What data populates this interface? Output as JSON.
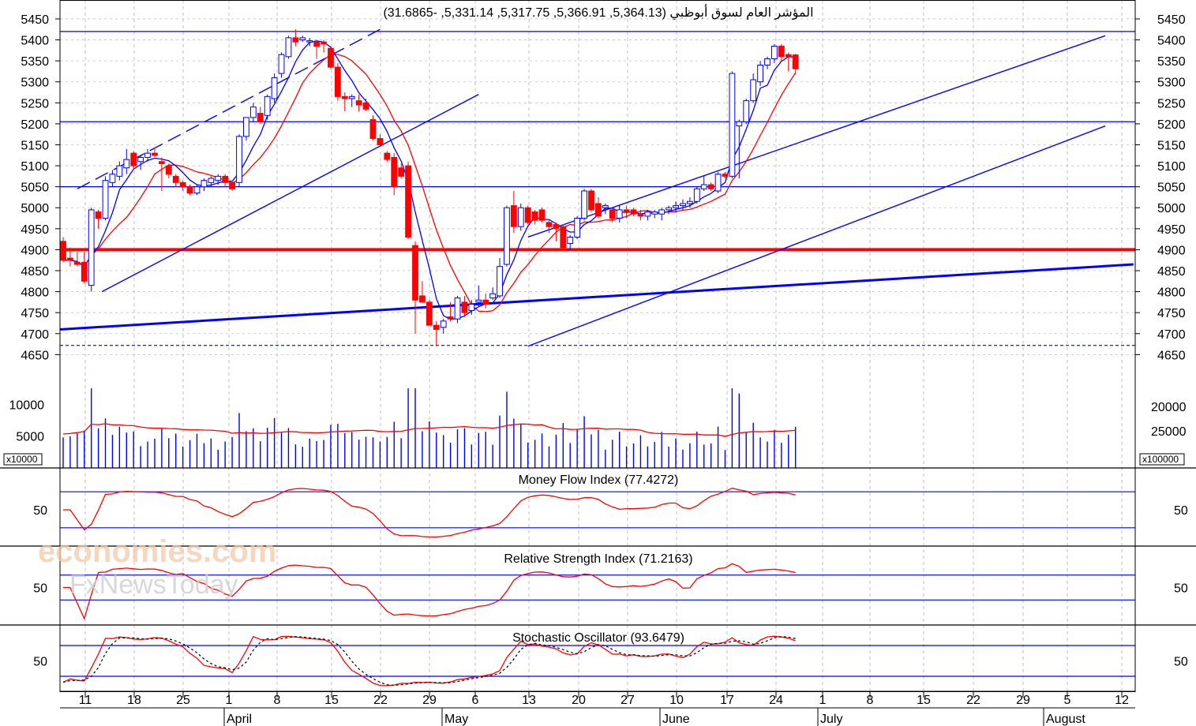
{
  "header": {
    "title": "المؤشر العام لسوق أبوظبي (5,364.13, 5,366.91, 5,317.75, 5,331.14, -31.6865)"
  },
  "watermark": {
    "line1": "economies.com",
    "line2": "FxNewsToday"
  },
  "colors": {
    "up": "#0000ff",
    "down": "#ff0000",
    "grid": "#c0c0c0",
    "line_blue": "#0000ff",
    "line_red": "#ff0000"
  },
  "chart_data": [
    {
      "type": "candlestick",
      "panel": "price",
      "title": "المؤشر العام لسوق أبوظبي (5,364.13, 5,366.91, 5,317.75, 5,331.14, -31.6865)",
      "y_ticks": [
        4650,
        4700,
        4750,
        4800,
        4850,
        4900,
        4950,
        5000,
        5050,
        5100,
        5150,
        5200,
        5250,
        5300,
        5350,
        5400,
        5450
      ],
      "ylim": [
        4630,
        5480
      ],
      "x_ticks": [
        "11",
        "18",
        "25",
        "1",
        "8",
        "15",
        "22",
        "29",
        "6",
        "13",
        "20",
        "27",
        "10",
        "17",
        "24",
        "1",
        "8",
        "15",
        "22",
        "29",
        "5",
        "12"
      ],
      "months": [
        "April",
        "May",
        "June",
        "July",
        "August"
      ],
      "candles": [
        {
          "o": 4920,
          "h": 4930,
          "l": 4870,
          "c": 4875
        },
        {
          "o": 4880,
          "h": 4905,
          "l": 4860,
          "c": 4875
        },
        {
          "o": 4870,
          "h": 4895,
          "l": 4860,
          "c": 4865
        },
        {
          "o": 4870,
          "h": 4895,
          "l": 4820,
          "c": 4825
        },
        {
          "o": 4815,
          "h": 5000,
          "l": 4800,
          "c": 4995
        },
        {
          "o": 4990,
          "h": 4995,
          "l": 4950,
          "c": 4975
        },
        {
          "o": 4975,
          "h": 5075,
          "l": 4970,
          "c": 5065
        },
        {
          "o": 5060,
          "h": 5090,
          "l": 5050,
          "c": 5080
        },
        {
          "o": 5075,
          "h": 5110,
          "l": 5065,
          "c": 5100
        },
        {
          "o": 5095,
          "h": 5140,
          "l": 5080,
          "c": 5115
        },
        {
          "o": 5130,
          "h": 5135,
          "l": 5090,
          "c": 5100
        },
        {
          "o": 5110,
          "h": 5125,
          "l": 5090,
          "c": 5120
        },
        {
          "o": 5120,
          "h": 5140,
          "l": 5110,
          "c": 5130
        },
        {
          "o": 5130,
          "h": 5140,
          "l": 5120,
          "c": 5125
        },
        {
          "o": 5110,
          "h": 5120,
          "l": 5040,
          "c": 5105
        },
        {
          "o": 5100,
          "h": 5105,
          "l": 5070,
          "c": 5080
        },
        {
          "o": 5075,
          "h": 5080,
          "l": 5050,
          "c": 5060
        },
        {
          "o": 5060,
          "h": 5065,
          "l": 5040,
          "c": 5050
        },
        {
          "o": 5050,
          "h": 5055,
          "l": 5030,
          "c": 5035
        },
        {
          "o": 5035,
          "h": 5055,
          "l": 5030,
          "c": 5050
        },
        {
          "o": 5050,
          "h": 5070,
          "l": 5040,
          "c": 5065
        },
        {
          "o": 5060,
          "h": 5075,
          "l": 5050,
          "c": 5070
        },
        {
          "o": 5065,
          "h": 5080,
          "l": 5055,
          "c": 5075
        },
        {
          "o": 5075,
          "h": 5080,
          "l": 5050,
          "c": 5060
        },
        {
          "o": 5060,
          "h": 5065,
          "l": 5040,
          "c": 5045
        },
        {
          "o": 5060,
          "h": 5175,
          "l": 5050,
          "c": 5170
        },
        {
          "o": 5170,
          "h": 5215,
          "l": 5160,
          "c": 5215
        },
        {
          "o": 5215,
          "h": 5250,
          "l": 5205,
          "c": 5240
        },
        {
          "o": 5225,
          "h": 5240,
          "l": 5200,
          "c": 5205
        },
        {
          "o": 5220,
          "h": 5270,
          "l": 5210,
          "c": 5265
        },
        {
          "o": 5260,
          "h": 5320,
          "l": 5250,
          "c": 5310
        },
        {
          "o": 5320,
          "h": 5370,
          "l": 5310,
          "c": 5365
        },
        {
          "o": 5360,
          "h": 5410,
          "l": 5355,
          "c": 5405
        },
        {
          "o": 5405,
          "h": 5425,
          "l": 5385,
          "c": 5395
        },
        {
          "o": 5400,
          "h": 5410,
          "l": 5395,
          "c": 5405
        },
        {
          "o": 5395,
          "h": 5405,
          "l": 5385,
          "c": 5398
        },
        {
          "o": 5395,
          "h": 5400,
          "l": 5355,
          "c": 5385
        },
        {
          "o": 5395,
          "h": 5400,
          "l": 5370,
          "c": 5390
        },
        {
          "o": 5380,
          "h": 5385,
          "l": 5330,
          "c": 5335
        },
        {
          "o": 5335,
          "h": 5345,
          "l": 5255,
          "c": 5265
        },
        {
          "o": 5265,
          "h": 5275,
          "l": 5230,
          "c": 5260
        },
        {
          "o": 5260,
          "h": 5270,
          "l": 5240,
          "c": 5265
        },
        {
          "o": 5255,
          "h": 5270,
          "l": 5230,
          "c": 5245
        },
        {
          "o": 5250,
          "h": 5260,
          "l": 5230,
          "c": 5235
        },
        {
          "o": 5210,
          "h": 5220,
          "l": 5160,
          "c": 5165
        },
        {
          "o": 5165,
          "h": 5175,
          "l": 5145,
          "c": 5150
        },
        {
          "o": 5130,
          "h": 5135,
          "l": 5110,
          "c": 5115
        },
        {
          "o": 5120,
          "h": 5130,
          "l": 5030,
          "c": 5050
        },
        {
          "o": 5095,
          "h": 5105,
          "l": 5070,
          "c": 5075
        },
        {
          "o": 5100,
          "h": 5110,
          "l": 4925,
          "c": 4930
        },
        {
          "o": 4910,
          "h": 4920,
          "l": 4700,
          "c": 4780
        },
        {
          "o": 4790,
          "h": 4825,
          "l": 4775,
          "c": 4775
        },
        {
          "o": 4775,
          "h": 4780,
          "l": 4720,
          "c": 4720
        },
        {
          "o": 4720,
          "h": 4730,
          "l": 4670,
          "c": 4710
        },
        {
          "o": 4715,
          "h": 4735,
          "l": 4700,
          "c": 4730
        },
        {
          "o": 4740,
          "h": 4775,
          "l": 4730,
          "c": 4735
        },
        {
          "o": 4735,
          "h": 4790,
          "l": 4725,
          "c": 4785
        },
        {
          "o": 4775,
          "h": 4790,
          "l": 4740,
          "c": 4750
        },
        {
          "o": 4755,
          "h": 4780,
          "l": 4745,
          "c": 4770
        },
        {
          "o": 4775,
          "h": 4815,
          "l": 4765,
          "c": 4780
        },
        {
          "o": 4780,
          "h": 4795,
          "l": 4760,
          "c": 4770
        },
        {
          "o": 4785,
          "h": 4810,
          "l": 4780,
          "c": 4795
        },
        {
          "o": 4790,
          "h": 4880,
          "l": 4785,
          "c": 4860
        },
        {
          "o": 4865,
          "h": 5005,
          "l": 4860,
          "c": 5000
        },
        {
          "o": 5005,
          "h": 5040,
          "l": 4940,
          "c": 4955
        },
        {
          "o": 4955,
          "h": 5010,
          "l": 4945,
          "c": 5000
        },
        {
          "o": 5000,
          "h": 5005,
          "l": 4960,
          "c": 4965
        },
        {
          "o": 4990,
          "h": 4995,
          "l": 4960,
          "c": 4970
        },
        {
          "o": 4995,
          "h": 5000,
          "l": 4965,
          "c": 4970
        },
        {
          "o": 4965,
          "h": 4970,
          "l": 4940,
          "c": 4955
        },
        {
          "o": 4960,
          "h": 4965,
          "l": 4920,
          "c": 4950
        },
        {
          "o": 4955,
          "h": 4960,
          "l": 4900,
          "c": 4905
        },
        {
          "o": 4915,
          "h": 4935,
          "l": 4900,
          "c": 4930
        },
        {
          "o": 4930,
          "h": 4980,
          "l": 4925,
          "c": 4975
        },
        {
          "o": 4975,
          "h": 5045,
          "l": 4970,
          "c": 5040
        },
        {
          "o": 5040,
          "h": 5045,
          "l": 4990,
          "c": 4995
        },
        {
          "o": 5010,
          "h": 5025,
          "l": 4975,
          "c": 4980
        },
        {
          "o": 5000,
          "h": 5010,
          "l": 4985,
          "c": 5005
        },
        {
          "o": 4995,
          "h": 5000,
          "l": 4965,
          "c": 4975
        },
        {
          "o": 4975,
          "h": 5005,
          "l": 4965,
          "c": 4995
        },
        {
          "o": 4995,
          "h": 5005,
          "l": 4975,
          "c": 4990
        },
        {
          "o": 4995,
          "h": 5000,
          "l": 4980,
          "c": 4985
        },
        {
          "o": 4985,
          "h": 4995,
          "l": 4970,
          "c": 4980
        },
        {
          "o": 4980,
          "h": 4995,
          "l": 4970,
          "c": 4990
        },
        {
          "o": 4985,
          "h": 4995,
          "l": 4975,
          "c": 4990
        },
        {
          "o": 4985,
          "h": 5000,
          "l": 4970,
          "c": 4995
        },
        {
          "o": 4995,
          "h": 5005,
          "l": 4985,
          "c": 5000
        },
        {
          "o": 5000,
          "h": 5015,
          "l": 4990,
          "c": 5005
        },
        {
          "o": 5005,
          "h": 5020,
          "l": 4995,
          "c": 5010
        },
        {
          "o": 5010,
          "h": 5025,
          "l": 5000,
          "c": 5015
        },
        {
          "o": 5015,
          "h": 5050,
          "l": 5010,
          "c": 5045
        },
        {
          "o": 5045,
          "h": 5075,
          "l": 5040,
          "c": 5055
        },
        {
          "o": 5055,
          "h": 5060,
          "l": 5040,
          "c": 5045
        },
        {
          "o": 5040,
          "h": 5085,
          "l": 5035,
          "c": 5080
        },
        {
          "o": 5080,
          "h": 5085,
          "l": 5070,
          "c": 5075
        },
        {
          "o": 5075,
          "h": 5325,
          "l": 5070,
          "c": 5320
        },
        {
          "o": 5195,
          "h": 5210,
          "l": 5070,
          "c": 5205
        },
        {
          "o": 5205,
          "h": 5260,
          "l": 5200,
          "c": 5255
        },
        {
          "o": 5255,
          "h": 5320,
          "l": 5250,
          "c": 5305
        },
        {
          "o": 5300,
          "h": 5350,
          "l": 5290,
          "c": 5340
        },
        {
          "o": 5340,
          "h": 5360,
          "l": 5330,
          "c": 5355
        },
        {
          "o": 5355,
          "h": 5390,
          "l": 5345,
          "c": 5385
        },
        {
          "o": 5385,
          "h": 5390,
          "l": 5350,
          "c": 5360
        },
        {
          "o": 5365,
          "h": 5370,
          "l": 5325,
          "c": 5360
        },
        {
          "o": 5364.13,
          "h": 5366.91,
          "l": 5317.75,
          "c": 5331.14
        }
      ]
    },
    {
      "type": "bar",
      "panel": "volume",
      "y_ticks_left": [
        5000,
        10000
      ],
      "y_ticks_right": [
        20000,
        25000
      ],
      "left_multiplier": "x10000",
      "right_multiplier": "x100000"
    },
    {
      "type": "line",
      "panel": "mfi",
      "title": "Money Flow Index (77.4272)",
      "y_ticks": [
        50
      ],
      "ylim": [
        0,
        100
      ],
      "levels": [
        20,
        80
      ]
    },
    {
      "type": "line",
      "panel": "rsi",
      "title": "Relative Strength Index (71.2163)",
      "y_ticks": [
        50
      ],
      "ylim": [
        0,
        100
      ],
      "levels": [
        30,
        70
      ]
    },
    {
      "type": "line",
      "panel": "stochastic",
      "title": "Stochastic Oscillator (93.6479)",
      "y_ticks": [
        50
      ],
      "ylim": [
        0,
        100
      ],
      "levels": [
        20,
        80
      ]
    }
  ]
}
